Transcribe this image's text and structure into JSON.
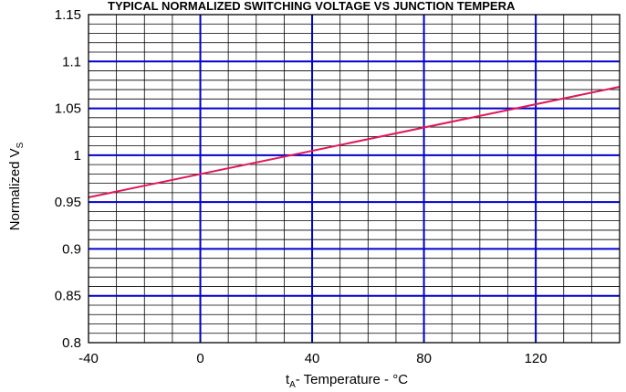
{
  "chart_data": {
    "type": "line",
    "title": "TYPICAL NORMALIZED SWITCHING VOLTAGE  VS JUNCTION  TEMPERA",
    "xlabel": {
      "main": "t",
      "sub": "A",
      "rest": "- Temperature - °C"
    },
    "ylabel": {
      "main": "Normalized V",
      "sub": "S"
    },
    "xlim": [
      -40,
      150
    ],
    "ylim": [
      0.8,
      1.15
    ],
    "xticks": [
      -40,
      0,
      40,
      80,
      120
    ],
    "yticks": [
      0.8,
      0.85,
      0.9,
      0.95,
      1,
      1.05,
      1.1,
      1.15
    ],
    "x_major_grid": [
      0,
      40,
      80,
      120
    ],
    "x_minor_step": 10,
    "y_major_grid": [
      0.85,
      0.9,
      0.95,
      1,
      1.05,
      1.1
    ],
    "y_minor_step": 0.01,
    "grid": true,
    "series": [
      {
        "x": [
          -40,
          150
        ],
        "y": [
          0.955,
          1.073
        ]
      }
    ],
    "colors": {
      "major_grid": "#0000cc",
      "minor_grid": "#000000",
      "line": "#e0185a",
      "frame": "#000000"
    }
  }
}
